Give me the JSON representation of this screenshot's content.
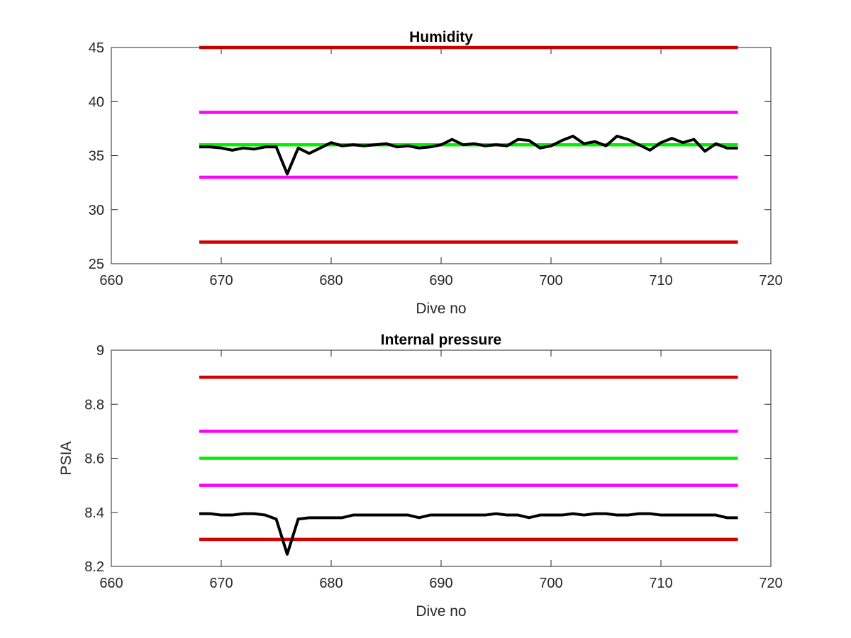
{
  "chart_data": [
    {
      "type": "line",
      "title": "Humidity",
      "xlabel": "Dive no",
      "ylabel": "",
      "xlim": [
        660,
        720
      ],
      "ylim": [
        25,
        45
      ],
      "xticks": [
        660,
        670,
        680,
        690,
        700,
        710,
        720
      ],
      "yticks": [
        25,
        30,
        35,
        40,
        45
      ],
      "grid": false,
      "series": [
        {
          "color": "#d40000",
          "x": [
            668,
            717
          ],
          "y": [
            45,
            45
          ]
        },
        {
          "color": "#ff00ff",
          "x": [
            668,
            717
          ],
          "y": [
            39,
            39
          ]
        },
        {
          "color": "#00ee00",
          "x": [
            668,
            717
          ],
          "y": [
            36,
            36
          ]
        },
        {
          "color": "#ff00ff",
          "x": [
            668,
            717
          ],
          "y": [
            33,
            33
          ]
        },
        {
          "color": "#d40000",
          "x": [
            668,
            717
          ],
          "y": [
            27,
            27
          ]
        },
        {
          "color": "#000000",
          "x": [
            668,
            669,
            670,
            671,
            672,
            673,
            674,
            675,
            676,
            677,
            678,
            679,
            680,
            681,
            682,
            683,
            684,
            685,
            686,
            687,
            688,
            689,
            690,
            691,
            692,
            693,
            694,
            695,
            696,
            697,
            698,
            699,
            700,
            701,
            702,
            703,
            704,
            705,
            706,
            707,
            708,
            709,
            710,
            711,
            712,
            713,
            714,
            715,
            716,
            717
          ],
          "y": [
            35.8,
            35.8,
            35.7,
            35.5,
            35.7,
            35.6,
            35.8,
            35.8,
            33.3,
            35.7,
            35.2,
            35.7,
            36.2,
            35.9,
            36.0,
            35.9,
            36.0,
            36.1,
            35.8,
            35.9,
            35.7,
            35.8,
            36.0,
            36.5,
            36.0,
            36.1,
            35.9,
            36.0,
            35.9,
            36.5,
            36.4,
            35.7,
            35.9,
            36.4,
            36.8,
            36.1,
            36.3,
            35.9,
            36.8,
            36.5,
            36.0,
            35.5,
            36.2,
            36.6,
            36.2,
            36.5,
            35.4,
            36.1,
            35.7,
            35.7
          ]
        }
      ]
    },
    {
      "type": "line",
      "title": "Internal pressure",
      "xlabel": "Dive no",
      "ylabel": "PSIA",
      "xlim": [
        660,
        720
      ],
      "ylim": [
        8.2,
        9
      ],
      "xticks": [
        660,
        670,
        680,
        690,
        700,
        710,
        720
      ],
      "yticks": [
        8.2,
        8.4,
        8.6,
        8.8,
        9
      ],
      "ytick_labels": [
        "8.2",
        "8.4",
        "8.6",
        "8.8",
        "9"
      ],
      "grid": false,
      "series": [
        {
          "color": "#d40000",
          "x": [
            668,
            717
          ],
          "y": [
            8.9,
            8.9
          ]
        },
        {
          "color": "#ff00ff",
          "x": [
            668,
            717
          ],
          "y": [
            8.7,
            8.7
          ]
        },
        {
          "color": "#00ee00",
          "x": [
            668,
            717
          ],
          "y": [
            8.6,
            8.6
          ]
        },
        {
          "color": "#ff00ff",
          "x": [
            668,
            717
          ],
          "y": [
            8.5,
            8.5
          ]
        },
        {
          "color": "#d40000",
          "x": [
            668,
            717
          ],
          "y": [
            8.3,
            8.3
          ]
        },
        {
          "color": "#000000",
          "x": [
            668,
            669,
            670,
            671,
            672,
            673,
            674,
            675,
            676,
            677,
            678,
            679,
            680,
            681,
            682,
            683,
            684,
            685,
            686,
            687,
            688,
            689,
            690,
            691,
            692,
            693,
            694,
            695,
            696,
            697,
            698,
            699,
            700,
            701,
            702,
            703,
            704,
            705,
            706,
            707,
            708,
            709,
            710,
            711,
            712,
            713,
            714,
            715,
            716,
            717
          ],
          "y": [
            8.395,
            8.395,
            8.39,
            8.39,
            8.395,
            8.395,
            8.39,
            8.375,
            8.245,
            8.375,
            8.38,
            8.38,
            8.38,
            8.38,
            8.39,
            8.39,
            8.39,
            8.39,
            8.39,
            8.39,
            8.38,
            8.39,
            8.39,
            8.39,
            8.39,
            8.39,
            8.39,
            8.395,
            8.39,
            8.39,
            8.38,
            8.39,
            8.39,
            8.39,
            8.395,
            8.39,
            8.395,
            8.395,
            8.39,
            8.39,
            8.395,
            8.395,
            8.39,
            8.39,
            8.39,
            8.39,
            8.39,
            8.39,
            8.38,
            8.38
          ]
        }
      ]
    }
  ]
}
